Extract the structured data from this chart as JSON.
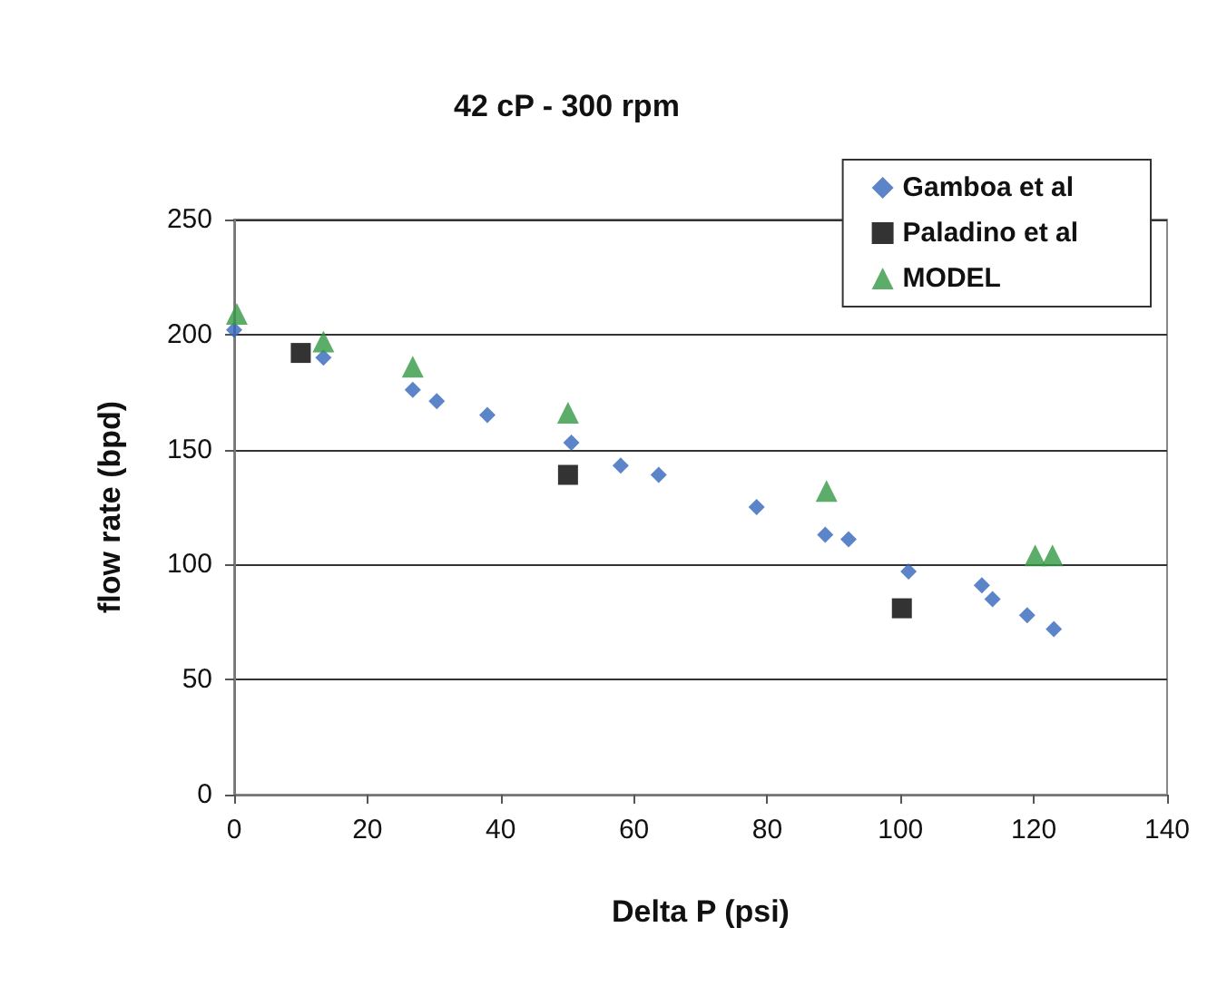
{
  "chart_data": {
    "type": "scatter",
    "title": "42 cP - 300 rpm",
    "xlabel": "Delta P (psi)",
    "ylabel": "flow rate (bpd)",
    "series": [
      {
        "name": "Gamboa et al",
        "color": "#3366bb",
        "marker": "diamond",
        "x": [
          0,
          13.4,
          26.8,
          30.4,
          38,
          50.6,
          58,
          63.7,
          78.4,
          88.7,
          92.2,
          101.2,
          112.2,
          113.8,
          119,
          123
        ],
        "values": [
          202,
          190,
          176,
          171,
          165,
          153,
          143,
          139,
          125,
          113,
          111,
          97,
          91,
          85,
          78,
          72
        ]
      },
      {
        "name": "Paladino et al",
        "color": "#000000",
        "marker": "square",
        "x": [
          10,
          50.1,
          100.2
        ],
        "values": [
          192,
          139,
          81
        ]
      },
      {
        "name": "MODEL",
        "color": "#339944",
        "marker": "triangle",
        "x": [
          0.4,
          13.4,
          26.8,
          50.1,
          88.9,
          120.2,
          122.8
        ],
        "values": [
          209,
          197,
          186,
          166,
          132,
          104,
          104
        ]
      }
    ],
    "xlim": [
      0,
      140
    ],
    "xticks": [
      0,
      20,
      40,
      60,
      80,
      100,
      120,
      140
    ],
    "ylim": [
      0,
      250
    ],
    "yticks": [
      0,
      50,
      100,
      150,
      200,
      250
    ],
    "grid": "y",
    "legend": "top right"
  }
}
